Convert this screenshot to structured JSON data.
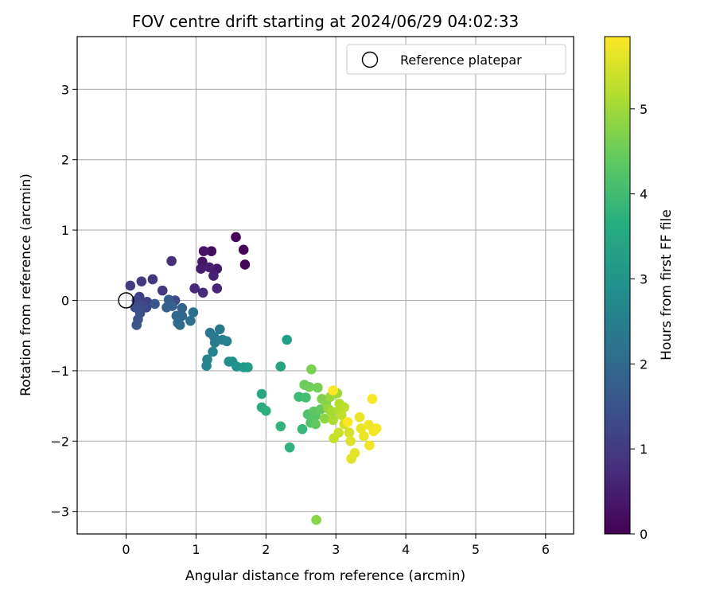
{
  "chart_data": {
    "type": "scatter",
    "title": "FOV centre drift starting at 2024/06/29 04:02:33",
    "xlabel": "Angular distance from reference (arcmin)",
    "ylabel": "Rotation from reference (arcmin)",
    "xlim": [
      -0.7,
      6.4
    ],
    "ylim": [
      -3.32,
      3.75
    ],
    "xticks": [
      0,
      1,
      2,
      3,
      4,
      5,
      6
    ],
    "yticks": [
      -3,
      -2,
      -1,
      0,
      1,
      2,
      3
    ],
    "grid": true,
    "legend": {
      "placement": "top-right",
      "entries": [
        {
          "label": "Reference platepar",
          "marker": "open-circle",
          "color": "#000000"
        }
      ]
    },
    "reference_point": {
      "x": 0,
      "y": 0
    },
    "colorbar": {
      "label": "Hours from first FF file",
      "colormap": "viridis",
      "range": [
        0,
        5.85
      ],
      "ticks": [
        0,
        1,
        2,
        3,
        4,
        5
      ]
    },
    "series": [
      {
        "points": [
          {
            "x": 1.57,
            "y": 0.9,
            "t": 0.05
          },
          {
            "x": 1.68,
            "y": 0.72,
            "t": 0.08
          },
          {
            "x": 1.7,
            "y": 0.51,
            "t": 0.1
          },
          {
            "x": 1.22,
            "y": 0.7,
            "t": 0.2
          },
          {
            "x": 1.11,
            "y": 0.7,
            "t": 0.3
          },
          {
            "x": 1.09,
            "y": 0.55,
            "t": 0.35
          },
          {
            "x": 1.3,
            "y": 0.45,
            "t": 0.4
          },
          {
            "x": 1.07,
            "y": 0.45,
            "t": 0.45
          },
          {
            "x": 1.19,
            "y": 0.47,
            "t": 0.5
          },
          {
            "x": 1.25,
            "y": 0.35,
            "t": 0.55
          },
          {
            "x": 1.3,
            "y": 0.17,
            "t": 0.6
          },
          {
            "x": 0.98,
            "y": 0.17,
            "t": 0.65
          },
          {
            "x": 1.1,
            "y": 0.11,
            "t": 0.7
          },
          {
            "x": 0.65,
            "y": 0.56,
            "t": 0.8
          },
          {
            "x": 0.38,
            "y": 0.3,
            "t": 0.9
          },
          {
            "x": 0.52,
            "y": 0.14,
            "t": 0.95
          },
          {
            "x": 0.22,
            "y": 0.27,
            "t": 1.0
          },
          {
            "x": 0.06,
            "y": 0.21,
            "t": 1.05
          },
          {
            "x": 0.19,
            "y": 0.05,
            "t": 1.1
          },
          {
            "x": 0.3,
            "y": -0.02,
            "t": 1.15
          },
          {
            "x": 0.29,
            "y": -0.1,
            "t": 1.2
          },
          {
            "x": 0.15,
            "y": 0.0,
            "t": 1.25
          },
          {
            "x": 0.7,
            "y": 0.0,
            "t": 1.3
          },
          {
            "x": 0.23,
            "y": -0.08,
            "t": 1.35
          },
          {
            "x": 0.13,
            "y": -0.1,
            "t": 1.4
          },
          {
            "x": 0.2,
            "y": -0.18,
            "t": 1.45
          },
          {
            "x": 0.17,
            "y": -0.27,
            "t": 1.5
          },
          {
            "x": 0.15,
            "y": -0.35,
            "t": 1.55
          },
          {
            "x": 0.41,
            "y": -0.05,
            "t": 1.6
          },
          {
            "x": 0.61,
            "y": 0.01,
            "t": 1.7
          },
          {
            "x": 0.58,
            "y": -0.1,
            "t": 1.75
          },
          {
            "x": 0.66,
            "y": -0.08,
            "t": 1.8
          },
          {
            "x": 0.8,
            "y": -0.11,
            "t": 1.85
          },
          {
            "x": 0.72,
            "y": -0.22,
            "t": 1.9
          },
          {
            "x": 0.8,
            "y": -0.22,
            "t": 1.95
          },
          {
            "x": 0.74,
            "y": -0.32,
            "t": 2.0
          },
          {
            "x": 0.77,
            "y": -0.35,
            "t": 2.05
          },
          {
            "x": 0.96,
            "y": -0.17,
            "t": 2.1
          },
          {
            "x": 0.92,
            "y": -0.29,
            "t": 2.15
          },
          {
            "x": 1.2,
            "y": -0.46,
            "t": 2.3
          },
          {
            "x": 1.34,
            "y": -0.41,
            "t": 2.35
          },
          {
            "x": 1.26,
            "y": -0.52,
            "t": 2.4
          },
          {
            "x": 1.27,
            "y": -0.6,
            "t": 2.45
          },
          {
            "x": 1.38,
            "y": -0.56,
            "t": 2.5
          },
          {
            "x": 1.44,
            "y": -0.58,
            "t": 2.55
          },
          {
            "x": 1.24,
            "y": -0.73,
            "t": 2.6
          },
          {
            "x": 1.16,
            "y": -0.84,
            "t": 2.65
          },
          {
            "x": 1.15,
            "y": -0.93,
            "t": 2.7
          },
          {
            "x": 1.47,
            "y": -0.87,
            "t": 2.9
          },
          {
            "x": 1.52,
            "y": -0.87,
            "t": 2.95
          },
          {
            "x": 1.58,
            "y": -0.94,
            "t": 3.0
          },
          {
            "x": 1.68,
            "y": -0.95,
            "t": 3.1
          },
          {
            "x": 1.74,
            "y": -0.95,
            "t": 3.2
          },
          {
            "x": 2.3,
            "y": -0.56,
            "t": 3.3
          },
          {
            "x": 2.21,
            "y": -0.94,
            "t": 3.4
          },
          {
            "x": 1.94,
            "y": -1.33,
            "t": 3.5
          },
          {
            "x": 1.94,
            "y": -1.52,
            "t": 3.6
          },
          {
            "x": 2.0,
            "y": -1.57,
            "t": 3.7
          },
          {
            "x": 2.34,
            "y": -2.09,
            "t": 3.75
          },
          {
            "x": 2.21,
            "y": -1.79,
            "t": 3.8
          },
          {
            "x": 2.52,
            "y": -1.83,
            "t": 3.9
          },
          {
            "x": 2.47,
            "y": -1.37,
            "t": 4.0
          },
          {
            "x": 2.57,
            "y": -1.38,
            "t": 4.1
          },
          {
            "x": 2.6,
            "y": -1.62,
            "t": 4.2
          },
          {
            "x": 2.64,
            "y": -1.74,
            "t": 4.25
          },
          {
            "x": 2.71,
            "y": -1.64,
            "t": 4.3
          },
          {
            "x": 2.68,
            "y": -1.58,
            "t": 4.35
          },
          {
            "x": 2.71,
            "y": -1.76,
            "t": 4.4
          },
          {
            "x": 2.78,
            "y": -1.55,
            "t": 4.45
          },
          {
            "x": 2.55,
            "y": -1.2,
            "t": 4.5
          },
          {
            "x": 2.62,
            "y": -1.23,
            "t": 4.55
          },
          {
            "x": 2.74,
            "y": -1.24,
            "t": 4.6
          },
          {
            "x": 2.65,
            "y": -0.98,
            "t": 4.65
          },
          {
            "x": 2.8,
            "y": -1.4,
            "t": 4.7
          },
          {
            "x": 2.86,
            "y": -1.46,
            "t": 4.75
          },
          {
            "x": 2.72,
            "y": -3.12,
            "t": 4.8
          },
          {
            "x": 2.84,
            "y": -1.68,
            "t": 4.85
          },
          {
            "x": 2.89,
            "y": -1.54,
            "t": 4.9
          },
          {
            "x": 2.92,
            "y": -1.37,
            "t": 4.95
          },
          {
            "x": 3.02,
            "y": -1.32,
            "t": 5.0
          },
          {
            "x": 2.94,
            "y": -1.58,
            "t": 5.05
          },
          {
            "x": 2.96,
            "y": -1.7,
            "t": 5.1
          },
          {
            "x": 3.05,
            "y": -1.56,
            "t": 5.15
          },
          {
            "x": 3.05,
            "y": -1.47,
            "t": 5.2
          },
          {
            "x": 3.12,
            "y": -1.52,
            "t": 5.25
          },
          {
            "x": 3.08,
            "y": -1.63,
            "t": 5.3
          },
          {
            "x": 2.97,
            "y": -1.96,
            "t": 5.35
          },
          {
            "x": 3.04,
            "y": -1.88,
            "t": 5.4
          },
          {
            "x": 3.12,
            "y": -1.76,
            "t": 5.45
          },
          {
            "x": 3.19,
            "y": -1.88,
            "t": 5.5
          },
          {
            "x": 3.21,
            "y": -2.0,
            "t": 5.55
          },
          {
            "x": 3.22,
            "y": -2.25,
            "t": 5.6
          },
          {
            "x": 3.27,
            "y": -2.17,
            "t": 5.62
          },
          {
            "x": 3.34,
            "y": -1.66,
            "t": 5.65
          },
          {
            "x": 3.36,
            "y": -1.82,
            "t": 5.68
          },
          {
            "x": 3.4,
            "y": -1.93,
            "t": 5.7
          },
          {
            "x": 3.47,
            "y": -1.77,
            "t": 5.72
          },
          {
            "x": 3.48,
            "y": -2.06,
            "t": 5.74
          },
          {
            "x": 3.54,
            "y": -1.86,
            "t": 5.76
          },
          {
            "x": 3.58,
            "y": -1.82,
            "t": 5.78
          },
          {
            "x": 3.52,
            "y": -1.4,
            "t": 5.8
          },
          {
            "x": 2.96,
            "y": -1.28,
            "t": 5.82
          },
          {
            "x": 3.17,
            "y": -1.73,
            "t": 5.84
          }
        ]
      }
    ]
  }
}
